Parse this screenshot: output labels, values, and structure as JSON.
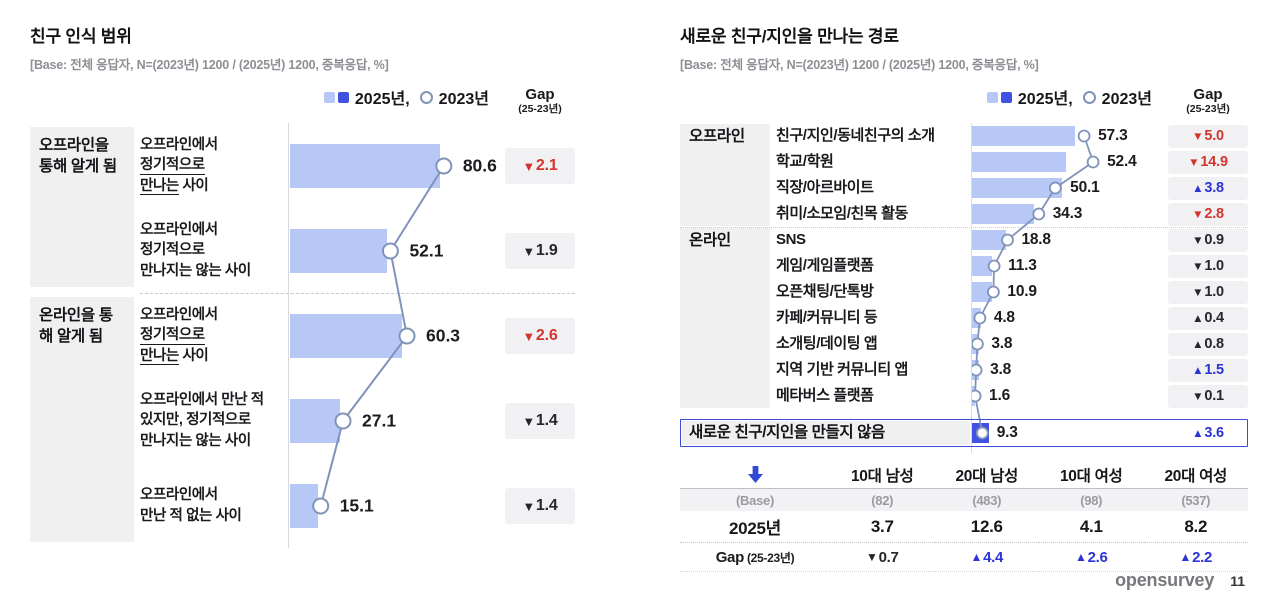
{
  "legend": {
    "label_2025": "2025년,",
    "label_2023": "2023년",
    "gap_title": "Gap",
    "gap_sub": "(25-23년)"
  },
  "colors": {
    "bar_2025_light": "#b7c8f6",
    "bar_2025_dark": "#4152e2",
    "line_2023": "#8093b8",
    "gap_red": "#d3342e",
    "gap_blue": "#2c34d4",
    "gap_dark": "#26262b"
  },
  "footer": {
    "brand": "opensurvey",
    "page": "11"
  },
  "chart_data": [
    {
      "id": "left",
      "type": "bar",
      "title": "친구 인식 범위",
      "base": "[Base: 전체 응답자, N=(2023년) 1200 / (2025년) 1200, 중복응답, %]",
      "legend_entries": [
        "2025년",
        "2023년"
      ],
      "gap_column": "Gap (25-23년)",
      "xmax": 110,
      "grid": false,
      "groups": [
        {
          "label": "오프라인을 통해 알게 됨",
          "rows": [
            0,
            1
          ]
        },
        {
          "label": "온라인을 통해 알게 됨",
          "rows": [
            2,
            3,
            4
          ]
        }
      ],
      "rows": [
        {
          "label": "오프라인에서 정기적으로 만나는 사이",
          "label_lines": [
            [
              {
                "t": "오프라인에서"
              }
            ],
            [
              {
                "t": "정기적으로",
                "u": true
              }
            ],
            [
              {
                "t": "만나는",
                "u": true
              },
              {
                "t": " 사이"
              }
            ]
          ],
          "v2025": 80.6,
          "v2023": 82.7,
          "gap": {
            "dir": "down",
            "value": "2.1",
            "color": "red"
          }
        },
        {
          "label": "오프라인에서 정기적으로 만나지는 않는 사이",
          "label_lines": [
            [
              {
                "t": "오프라인에서"
              }
            ],
            [
              {
                "t": "정기적으로"
              }
            ],
            [
              {
                "t": "만나지는 않는 사이"
              }
            ]
          ],
          "v2025": 52.1,
          "v2023": 54.0,
          "gap": {
            "dir": "down",
            "value": "1.9",
            "color": "dark"
          }
        },
        {
          "label": "오프라인에서 정기적으로 만나는 사이",
          "label_lines": [
            [
              {
                "t": "오프라인에서"
              }
            ],
            [
              {
                "t": "정기적으로",
                "u": true
              }
            ],
            [
              {
                "t": "만나는",
                "u": true
              },
              {
                "t": " 사이"
              }
            ]
          ],
          "v2025": 60.3,
          "v2023": 62.9,
          "gap": {
            "dir": "down",
            "value": "2.6",
            "color": "red"
          }
        },
        {
          "label": "오프라인에서 만난 적 있지만, 정기적으로 만나지는 않는 사이",
          "label_lines": [
            [
              {
                "t": "오프라인에서 만난 적"
              }
            ],
            [
              {
                "t": "있지만, 정기적으로"
              }
            ],
            [
              {
                "t": "만나지는 않는 사이"
              }
            ]
          ],
          "v2025": 27.1,
          "v2023": 28.5,
          "gap": {
            "dir": "down",
            "value": "1.4",
            "color": "dark"
          }
        },
        {
          "label": "오프라인에서 만난 적 없는 사이",
          "label_lines": [
            [
              {
                "t": "오프라인에서"
              }
            ],
            [
              {
                "t": "만난 적 없는 사이"
              }
            ]
          ],
          "v2025": 15.1,
          "v2023": 16.5,
          "gap": {
            "dir": "down",
            "value": "1.4",
            "color": "dark"
          }
        }
      ]
    },
    {
      "id": "right",
      "type": "bar",
      "title": "새로운 친구/지인을 만나는 경로",
      "base": "[Base: 전체 응답자, N=(2023년) 1200 / (2025년) 1200, 중복응답, %]",
      "legend_entries": [
        "2025년",
        "2023년"
      ],
      "gap_column": "Gap (25-23년)",
      "xmax": 105,
      "grid": false,
      "groups": [
        {
          "label": "오프라인",
          "rows": [
            0,
            1,
            2,
            3
          ]
        },
        {
          "label": "온라인",
          "rows": [
            4,
            5,
            6,
            7,
            8,
            9,
            10
          ]
        }
      ],
      "rows": [
        {
          "label": "친구/지인/동네친구의 소개",
          "v2025": 57.3,
          "v2023": 62.3,
          "gap": {
            "dir": "down",
            "value": "5.0",
            "color": "red"
          }
        },
        {
          "label": "학교/학원",
          "v2025": 52.4,
          "v2023": 67.3,
          "gap": {
            "dir": "down",
            "value": "14.9",
            "color": "red"
          }
        },
        {
          "label": "직장/아르바이트",
          "v2025": 50.1,
          "v2023": 46.3,
          "gap": {
            "dir": "up",
            "value": "3.8",
            "color": "blue"
          }
        },
        {
          "label": "취미/소모임/친목 활동",
          "v2025": 34.3,
          "v2023": 37.1,
          "gap": {
            "dir": "down",
            "value": "2.8",
            "color": "red"
          }
        },
        {
          "label": "SNS",
          "v2025": 18.8,
          "v2023": 19.7,
          "gap": {
            "dir": "down",
            "value": "0.9",
            "color": "dark"
          }
        },
        {
          "label": "게임/게임플랫폼",
          "v2025": 11.3,
          "v2023": 12.3,
          "gap": {
            "dir": "down",
            "value": "1.0",
            "color": "dark"
          }
        },
        {
          "label": "오픈채팅/단톡방",
          "v2025": 10.9,
          "v2023": 11.9,
          "gap": {
            "dir": "down",
            "value": "1.0",
            "color": "dark"
          }
        },
        {
          "label": "카페/커뮤니티 등",
          "v2025": 4.8,
          "v2023": 4.4,
          "gap": {
            "dir": "up",
            "value": "0.4",
            "color": "dark"
          }
        },
        {
          "label": "소개팅/데이팅 앱",
          "v2025": 3.8,
          "v2023": 3.0,
          "gap": {
            "dir": "up",
            "value": "0.8",
            "color": "dark"
          }
        },
        {
          "label": "지역 기반 커뮤니티 앱",
          "v2025": 3.8,
          "v2023": 2.3,
          "gap": {
            "dir": "up",
            "value": "1.5",
            "color": "blue"
          }
        },
        {
          "label": "메타버스 플랫폼",
          "v2025": 1.6,
          "v2023": 1.7,
          "gap": {
            "dir": "down",
            "value": "0.1",
            "color": "dark"
          }
        }
      ],
      "highlight_row": {
        "label": "새로운 친구/지인을 만들지 않음",
        "v2025": 9.3,
        "v2023": 5.7,
        "gap": {
          "dir": "up",
          "value": "3.6",
          "color": "blue"
        }
      }
    },
    {
      "id": "demographic-table",
      "type": "table",
      "columns": [
        "10대 남성",
        "20대 남성",
        "10대 여성",
        "20대 여성"
      ],
      "rows": [
        {
          "label": "(Base)",
          "style": "base",
          "values": [
            "(82)",
            "(483)",
            "(98)",
            "(537)"
          ]
        },
        {
          "label": "2025년",
          "style": "year",
          "values": [
            "3.7",
            "12.6",
            "4.1",
            "8.2"
          ]
        },
        {
          "label": "Gap",
          "label_sub": "(25-23년)",
          "style": "gap",
          "values": [
            {
              "dir": "down",
              "value": "0.7",
              "color": "dark"
            },
            {
              "dir": "up",
              "value": "4.4",
              "color": "blue"
            },
            {
              "dir": "up",
              "value": "2.6",
              "color": "blue"
            },
            {
              "dir": "up",
              "value": "2.2",
              "color": "blue"
            }
          ]
        }
      ]
    }
  ]
}
